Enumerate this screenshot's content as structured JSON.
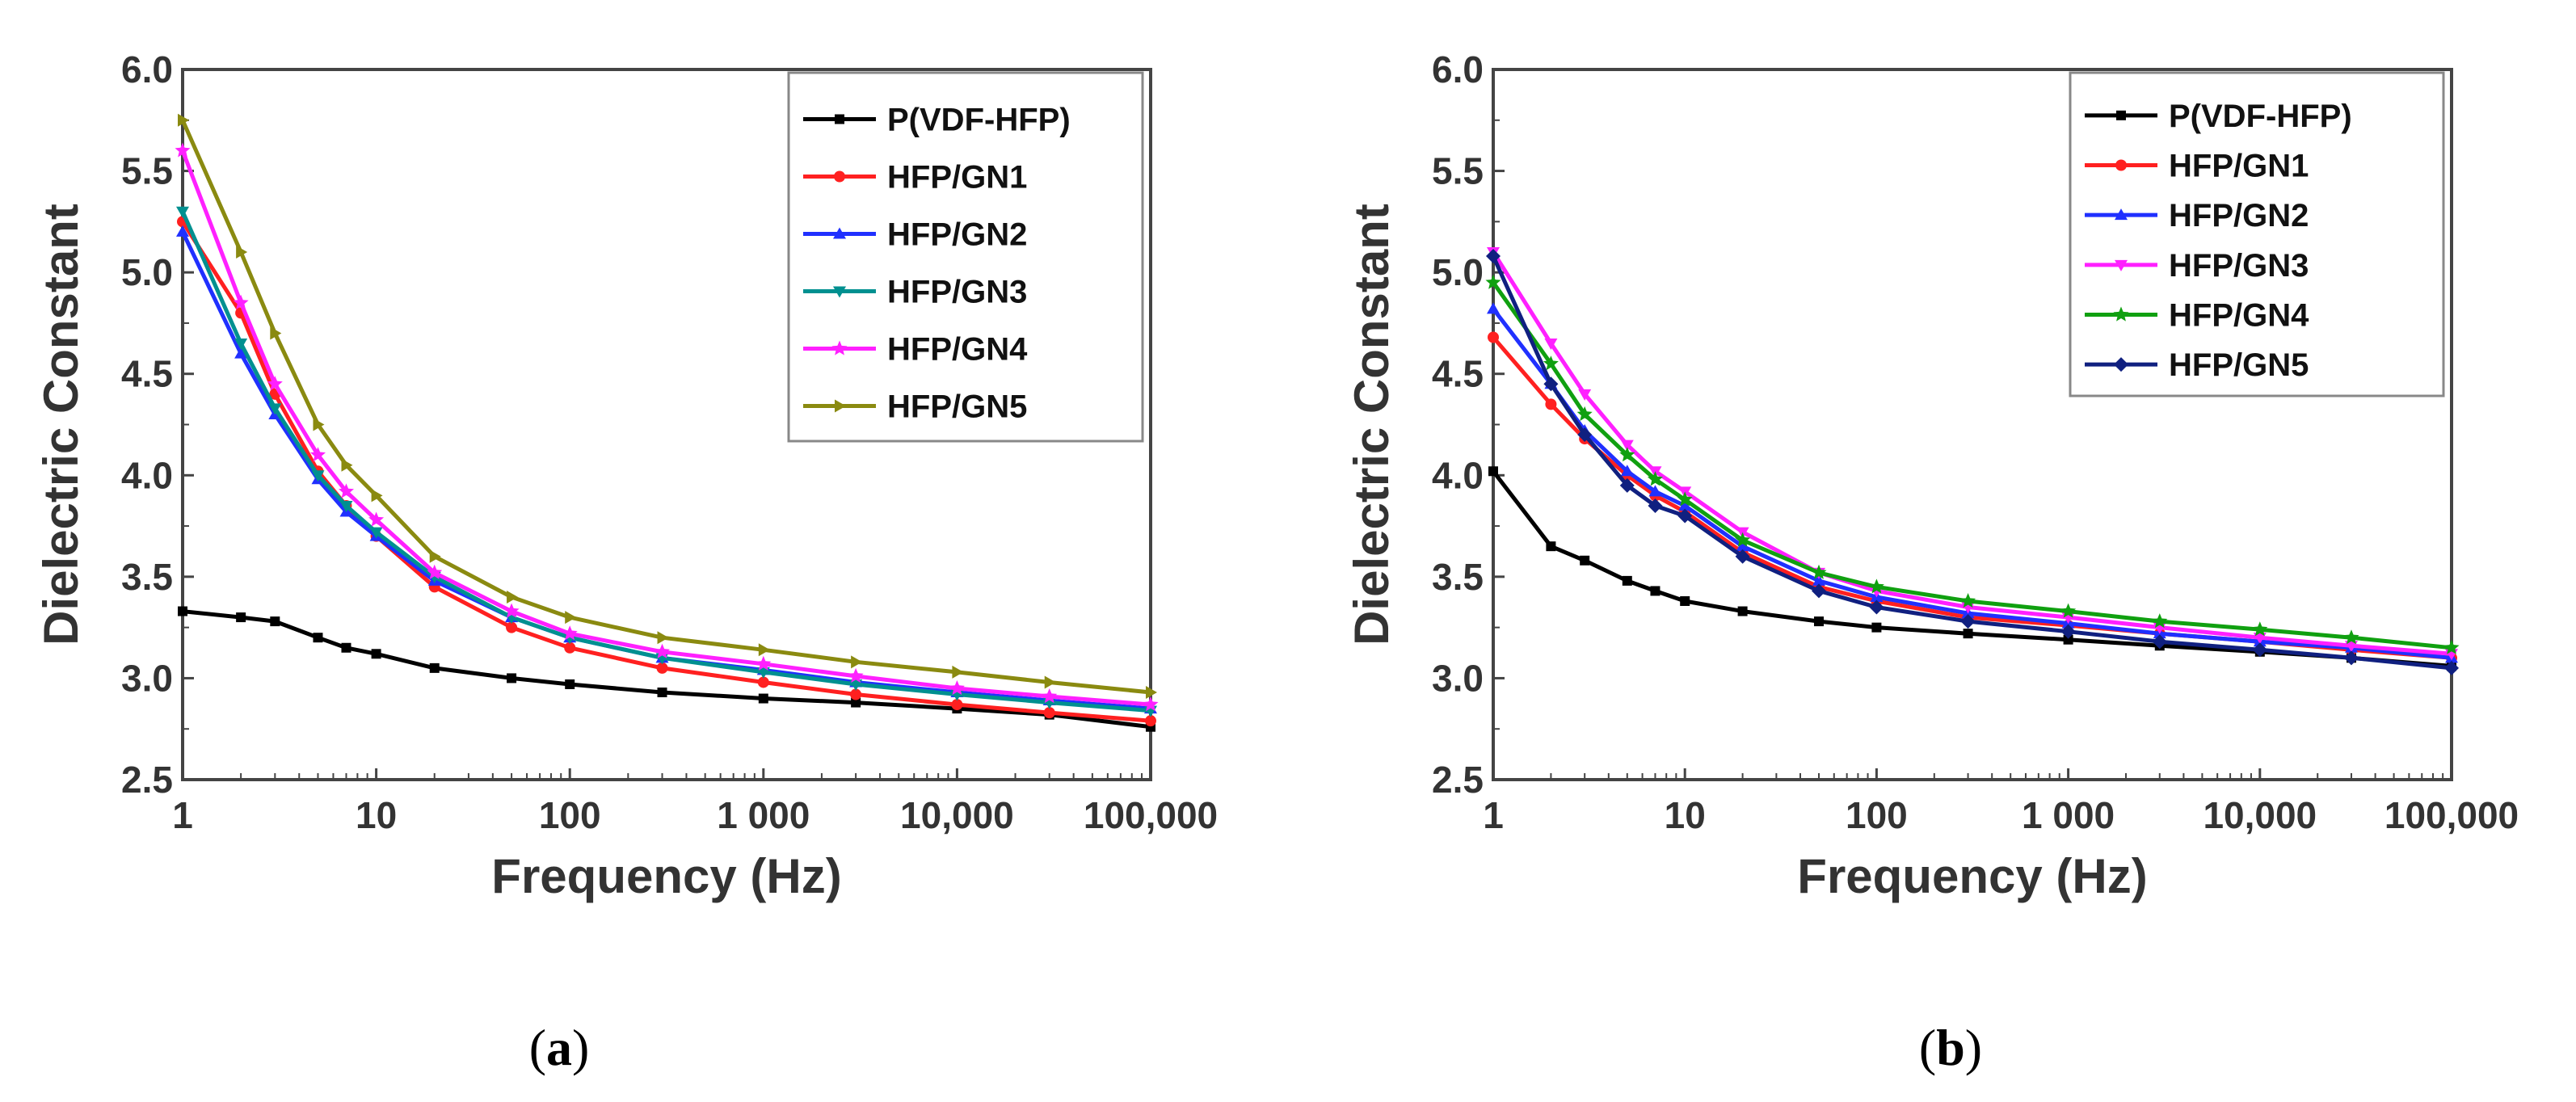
{
  "chart_data": [
    {
      "type": "line",
      "panel_label_open": "(",
      "panel_label_letter": "a",
      "panel_label_close": ")",
      "xlabel": "Frequency (Hz)",
      "ylabel": "Dielectric Constant",
      "xscale": "log",
      "xlim": [
        1,
        100000
      ],
      "ylim": [
        2.5,
        6.0
      ],
      "x_tick_values": [
        1,
        10,
        100,
        1000,
        10000,
        100000
      ],
      "x_tick_labels": [
        "1",
        "10",
        "100",
        "1 000",
        "10,000",
        "100,000"
      ],
      "y_tick_values": [
        2.5,
        3.0,
        3.5,
        4.0,
        4.5,
        5.0,
        5.5,
        6.0
      ],
      "y_tick_labels": [
        "2.5",
        "3.0",
        "3.5",
        "4.0",
        "4.5",
        "5.0",
        "5.5",
        "6.0"
      ],
      "legend_position": "top-right",
      "series": [
        {
          "name": "P(VDF-HFP)",
          "color": "#000000",
          "marker": "square",
          "x": [
            1,
            2,
            3,
            5,
            7,
            10,
            20,
            50,
            100,
            300,
            1000,
            3000,
            10000,
            30000,
            100000
          ],
          "values": [
            3.33,
            3.3,
            3.28,
            3.2,
            3.15,
            3.12,
            3.05,
            3.0,
            2.97,
            2.93,
            2.9,
            2.88,
            2.85,
            2.82,
            2.76
          ]
        },
        {
          "name": "HFP/GN1",
          "color": "#ff2020",
          "marker": "circle",
          "x": [
            1,
            2,
            3,
            5,
            7,
            10,
            20,
            50,
            100,
            300,
            1000,
            3000,
            10000,
            30000,
            100000
          ],
          "values": [
            5.25,
            4.8,
            4.4,
            4.02,
            3.85,
            3.7,
            3.45,
            3.25,
            3.15,
            3.05,
            2.98,
            2.92,
            2.87,
            2.83,
            2.79
          ]
        },
        {
          "name": "HFP/GN2",
          "color": "#2030ff",
          "marker": "triangle-up",
          "x": [
            1,
            2,
            3,
            5,
            7,
            10,
            20,
            50,
            100,
            300,
            1000,
            3000,
            10000,
            30000,
            100000
          ],
          "values": [
            5.2,
            4.6,
            4.3,
            3.98,
            3.82,
            3.7,
            3.48,
            3.3,
            3.2,
            3.1,
            3.04,
            2.98,
            2.93,
            2.89,
            2.85
          ]
        },
        {
          "name": "HFP/GN3",
          "color": "#009090",
          "marker": "triangle-down",
          "x": [
            1,
            2,
            3,
            5,
            7,
            10,
            20,
            50,
            100,
            300,
            1000,
            3000,
            10000,
            30000,
            100000
          ],
          "values": [
            5.3,
            4.65,
            4.33,
            4.0,
            3.85,
            3.72,
            3.5,
            3.3,
            3.2,
            3.1,
            3.03,
            2.97,
            2.92,
            2.88,
            2.84
          ]
        },
        {
          "name": "HFP/GN4",
          "color": "#ff20ff",
          "marker": "star",
          "x": [
            1,
            2,
            3,
            5,
            7,
            10,
            20,
            50,
            100,
            300,
            1000,
            3000,
            10000,
            30000,
            100000
          ],
          "values": [
            5.6,
            4.85,
            4.45,
            4.1,
            3.92,
            3.78,
            3.52,
            3.33,
            3.22,
            3.13,
            3.07,
            3.01,
            2.95,
            2.91,
            2.87
          ]
        },
        {
          "name": "HFP/GN5",
          "color": "#8a8a10",
          "marker": "triangle-right",
          "x": [
            1,
            2,
            3,
            5,
            7,
            10,
            20,
            50,
            100,
            300,
            1000,
            3000,
            10000,
            30000,
            100000
          ],
          "values": [
            5.75,
            5.1,
            4.7,
            4.25,
            4.05,
            3.9,
            3.6,
            3.4,
            3.3,
            3.2,
            3.14,
            3.08,
            3.03,
            2.98,
            2.93
          ]
        }
      ]
    },
    {
      "type": "line",
      "panel_label_open": "(",
      "panel_label_letter": "b",
      "panel_label_close": ")",
      "xlabel": "Frequency (Hz)",
      "ylabel": "Dielectric Constant",
      "xscale": "log",
      "xlim": [
        1,
        100000
      ],
      "ylim": [
        2.5,
        6.0
      ],
      "x_tick_values": [
        1,
        10,
        100,
        1000,
        10000,
        100000
      ],
      "x_tick_labels": [
        "1",
        "10",
        "100",
        "1 000",
        "10,000",
        "100,000"
      ],
      "y_tick_values": [
        2.5,
        3.0,
        3.5,
        4.0,
        4.5,
        5.0,
        5.5,
        6.0
      ],
      "y_tick_labels": [
        "2.5",
        "3.0",
        "3.5",
        "4.0",
        "4.5",
        "5.0",
        "5.5",
        "6.0"
      ],
      "legend_position": "top-right",
      "series": [
        {
          "name": "P(VDF-HFP)",
          "color": "#000000",
          "marker": "square",
          "x": [
            1,
            2,
            3,
            5,
            7,
            10,
            20,
            50,
            100,
            300,
            1000,
            3000,
            10000,
            30000,
            100000
          ],
          "values": [
            4.02,
            3.65,
            3.58,
            3.48,
            3.43,
            3.38,
            3.33,
            3.28,
            3.25,
            3.22,
            3.19,
            3.16,
            3.13,
            3.1,
            3.06
          ]
        },
        {
          "name": "HFP/GN1",
          "color": "#ff2020",
          "marker": "circle",
          "x": [
            1,
            2,
            3,
            5,
            7,
            10,
            20,
            50,
            100,
            300,
            1000,
            3000,
            10000,
            30000,
            100000
          ],
          "values": [
            4.68,
            4.35,
            4.18,
            4.0,
            3.9,
            3.82,
            3.62,
            3.45,
            3.38,
            3.3,
            3.26,
            3.22,
            3.18,
            3.14,
            3.1
          ]
        },
        {
          "name": "HFP/GN2",
          "color": "#2030ff",
          "marker": "triangle-up",
          "x": [
            1,
            2,
            3,
            5,
            7,
            10,
            20,
            50,
            100,
            300,
            1000,
            3000,
            10000,
            30000,
            100000
          ],
          "values": [
            4.82,
            4.45,
            4.22,
            4.02,
            3.92,
            3.85,
            3.65,
            3.48,
            3.4,
            3.32,
            3.27,
            3.22,
            3.18,
            3.15,
            3.1
          ]
        },
        {
          "name": "HFP/GN3",
          "color": "#ff20ff",
          "marker": "triangle-down",
          "x": [
            1,
            2,
            3,
            5,
            7,
            10,
            20,
            50,
            100,
            300,
            1000,
            3000,
            10000,
            30000,
            100000
          ],
          "values": [
            5.1,
            4.65,
            4.4,
            4.15,
            4.02,
            3.92,
            3.72,
            3.52,
            3.43,
            3.35,
            3.3,
            3.25,
            3.2,
            3.16,
            3.12
          ]
        },
        {
          "name": "HFP/GN4",
          "color": "#10a010",
          "marker": "star",
          "x": [
            1,
            2,
            3,
            5,
            7,
            10,
            20,
            50,
            100,
            300,
            1000,
            3000,
            10000,
            30000,
            100000
          ],
          "values": [
            4.95,
            4.55,
            4.3,
            4.1,
            3.98,
            3.88,
            3.68,
            3.52,
            3.45,
            3.38,
            3.33,
            3.28,
            3.24,
            3.2,
            3.15
          ]
        },
        {
          "name": "HFP/GN5",
          "color": "#102080",
          "marker": "diamond",
          "x": [
            1,
            2,
            3,
            5,
            7,
            10,
            20,
            50,
            100,
            300,
            1000,
            3000,
            10000,
            30000,
            100000
          ],
          "values": [
            5.08,
            4.45,
            4.2,
            3.95,
            3.85,
            3.8,
            3.6,
            3.43,
            3.35,
            3.28,
            3.23,
            3.18,
            3.14,
            3.1,
            3.05
          ]
        }
      ]
    }
  ]
}
